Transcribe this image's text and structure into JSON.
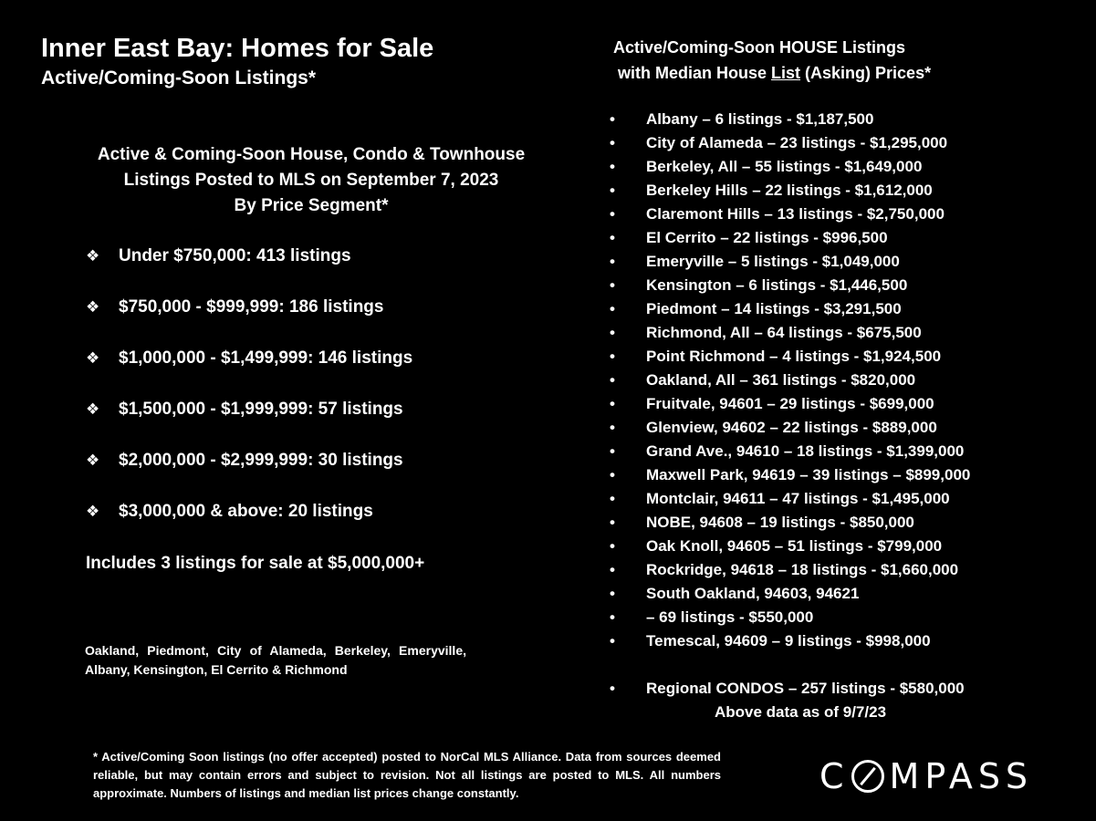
{
  "left": {
    "title": "Inner East Bay: Homes for Sale",
    "subtitle": "Active/Coming-Soon Listings*",
    "heading_lines": [
      "Active & Coming-Soon House, Condo & Townhouse",
      "Listings Posted to MLS on September 7, 2023",
      "By Price Segment*"
    ],
    "bullet_icon": "diamond-bullet",
    "segments": [
      "Under $750,000:  413 listings",
      "$750,000 - $999,999:  186 listings",
      "$1,000,000 - $1,499,999:  146 listings",
      "$1,500,000 - $1,999,999:  57 listings",
      "$2,000,000 - $2,999,999:  30 listings",
      "$3,000,000 & above:  20 listings"
    ],
    "extra_note": "Includes 3 listings for sale at $5,000,000+",
    "area_note": "Oakland, Piedmont, City of Alameda, Berkeley, Emeryville, Albany, Kensington, El Cerrito & Richmond"
  },
  "right": {
    "heading_line1": "Active/Coming-Soon HOUSE Listings",
    "heading_line2_pre": "with Median House ",
    "heading_line2_underlined": "List",
    "heading_line2_post": " (Asking) Prices*",
    "listings": [
      "Albany – 6 listings - $1,187,500",
      "City of Alameda – 23 listings - $1,295,000",
      "Berkeley, All – 55 listings - $1,649,000",
      "Berkeley Hills – 22 listings - $1,612,000",
      "Claremont Hills – 13 listings - $2,750,000",
      "El Cerrito – 22 listings - $996,500",
      "Emeryville – 5 listings - $1,049,000",
      "Kensington – 6 listings - $1,446,500",
      "Piedmont – 14 listings - $3,291,500",
      "Richmond, All – 64 listings - $675,500",
      "Point Richmond – 4 listings - $1,924,500",
      "Oakland, All – 361 listings - $820,000",
      "Fruitvale, 94601 – 29 listings - $699,000",
      "Glenview, 94602 – 22 listings - $889,000",
      "Grand Ave., 94610 – 18 listings - $1,399,000",
      "Maxwell Park, 94619 – 39 listings – $899,000",
      "Montclair, 94611 – 47 listings - $1,495,000",
      "NOBE, 94608 – 19 listings - $850,000",
      "Oak Knoll, 94605 – 51 listings - $799,000",
      "Rockridge, 94618 – 18 listings - $1,660,000",
      "South Oakland, 94603, 94621",
      "– 69 listings - $550,000",
      "Temescal, 94609 – 9 listings - $998,000"
    ],
    "condos": "Regional CONDOS – 257 listings - $580,000",
    "as_of": "Above data as of 9/7/23"
  },
  "footer": {
    "disclaimer": "* Active/Coming Soon listings (no offer accepted) posted to NorCal MLS Alliance.  Data from sources deemed reliable, but may contain errors and subject to revision.  Not all listings are posted to MLS. All numbers approximate. Numbers of listings and median list prices change constantly.",
    "logo_text": "COMPASS",
    "logo_prefix": "C",
    "logo_suffix": "MPASS"
  }
}
